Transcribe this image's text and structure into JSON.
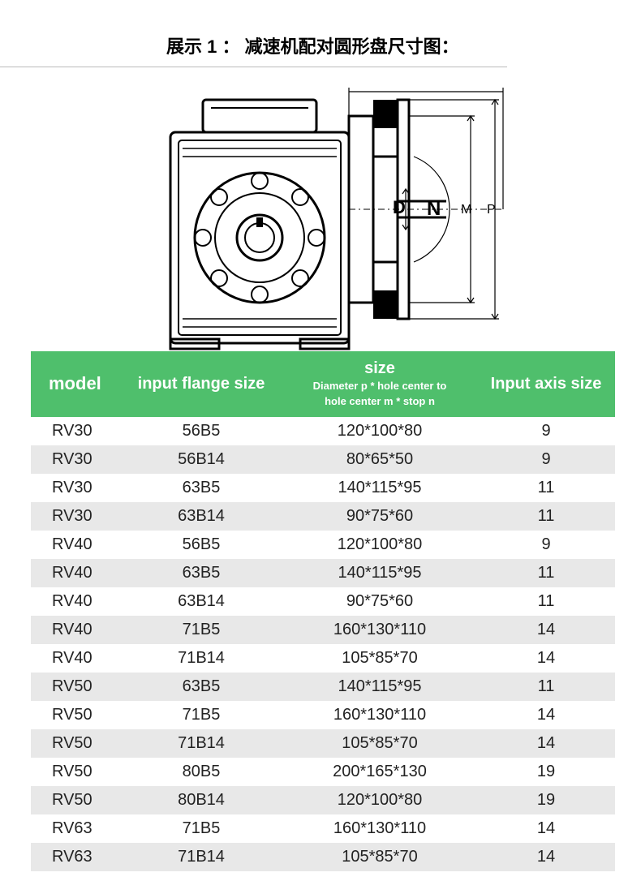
{
  "title_text": "展示 1 ： 减速机配对圆形盘尺寸图：",
  "diagram_labels": {
    "D": "D",
    "N": "N",
    "M": "M",
    "P": "P"
  },
  "table": {
    "header": {
      "model": "model",
      "flange": "input flange size",
      "size_main": "size",
      "size_sub1": "Diameter p * hole center to",
      "size_sub2": "hole center m * stop n",
      "axis": "Input axis size"
    },
    "header_bg": "#4fbf6c",
    "header_color": "#ffffff",
    "row_bg_even": "#e8e8e8",
    "row_bg_odd": "#ffffff",
    "columns": [
      "model",
      "input flange size",
      "size",
      "Input axis size"
    ],
    "rows": [
      [
        "RV30",
        "56B5",
        "120*100*80",
        "9"
      ],
      [
        "RV30",
        "56B14",
        "80*65*50",
        "9"
      ],
      [
        "RV30",
        "63B5",
        "140*115*95",
        "11"
      ],
      [
        "RV30",
        "63B14",
        "90*75*60",
        "11"
      ],
      [
        "RV40",
        "56B5",
        "120*100*80",
        "9"
      ],
      [
        "RV40",
        "63B5",
        "140*115*95",
        "11"
      ],
      [
        "RV40",
        "63B14",
        "90*75*60",
        "11"
      ],
      [
        "RV40",
        "71B5",
        "160*130*110",
        "14"
      ],
      [
        "RV40",
        "71B14",
        "105*85*70",
        "14"
      ],
      [
        "RV50",
        "63B5",
        "140*115*95",
        "11"
      ],
      [
        "RV50",
        "71B5",
        "160*130*110",
        "14"
      ],
      [
        "RV50",
        "71B14",
        "105*85*70",
        "14"
      ],
      [
        "RV50",
        "80B5",
        "200*165*130",
        "19"
      ],
      [
        "RV50",
        "80B14",
        "120*100*80",
        "19"
      ],
      [
        "RV63",
        "71B5",
        "160*130*110",
        "14"
      ],
      [
        "RV63",
        "71B14",
        "105*85*70",
        "14"
      ]
    ]
  },
  "diagram_style": {
    "stroke": "#000000",
    "stroke_width_main": 3,
    "stroke_width_thin": 1.5,
    "fill": "#ffffff",
    "font_size_label": 20,
    "font_family": "Arial"
  }
}
